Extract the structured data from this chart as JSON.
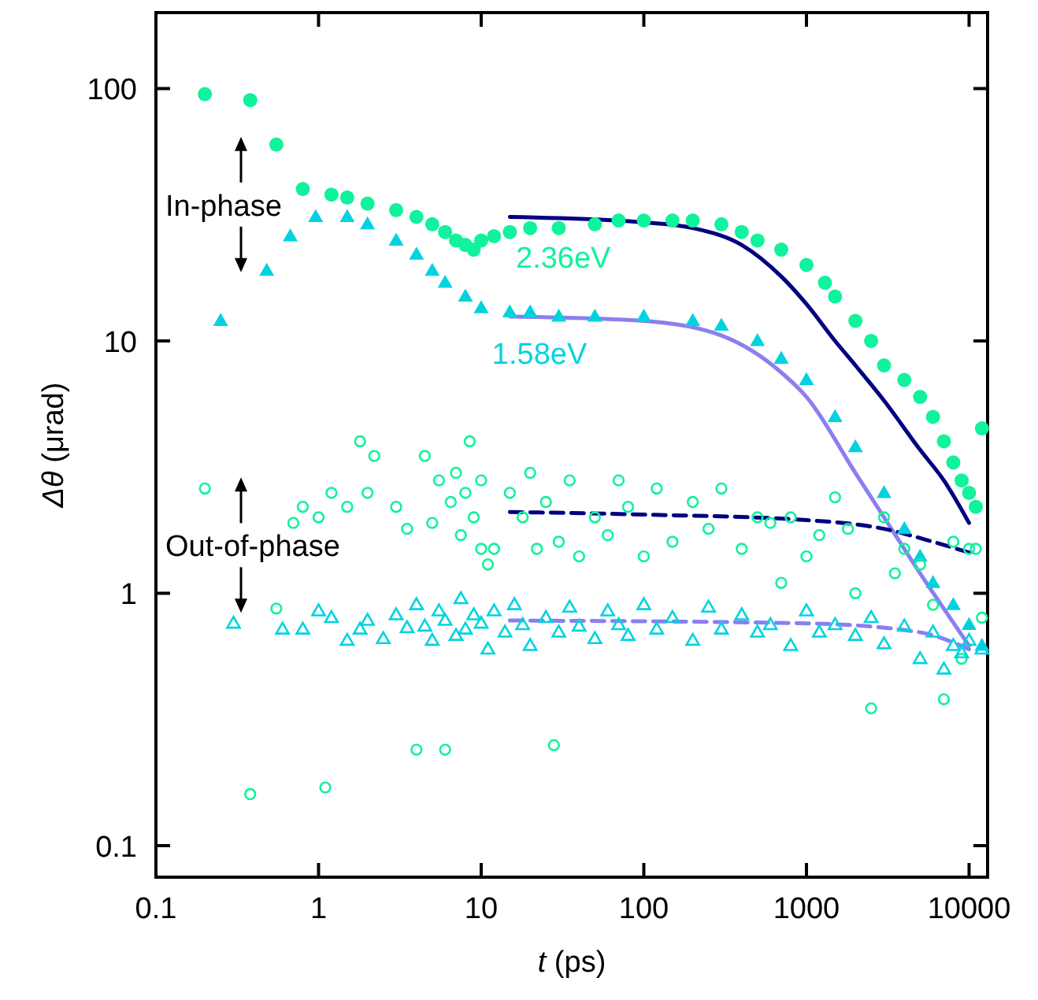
{
  "chart_data": {
    "type": "scatter",
    "xlabel": "t (ps)",
    "ylabel": "Δθ (μrad)",
    "log": "xy",
    "grid": false,
    "xlim": [
      0.1,
      13000
    ],
    "xticks": [
      0.1,
      1,
      10,
      100,
      1000,
      10000
    ],
    "ylim": [
      0.075,
      200
    ],
    "yticks": [
      0.1,
      1,
      10,
      100
    ],
    "annotations": [
      "In-phase",
      "Out-of-phase"
    ],
    "series": [
      {
        "name": "2.36eV",
        "marker": "circle",
        "color": "#10f29c",
        "x": [
          0.2,
          0.38,
          0.55,
          0.8,
          1.2,
          1.5,
          2,
          3,
          4,
          5,
          6,
          7,
          8,
          9,
          10,
          12,
          15,
          20,
          30,
          50,
          70,
          100,
          150,
          200,
          300,
          400,
          500,
          700,
          1000,
          1300,
          1500,
          2000,
          2500,
          3000,
          4000,
          5000,
          6000,
          7000,
          8000,
          9000,
          10000,
          11000,
          12000
        ],
        "values": [
          95,
          90,
          60,
          40,
          38,
          37,
          35,
          33,
          31,
          29,
          27,
          25,
          24,
          23,
          25,
          26,
          27,
          28,
          28,
          29,
          30,
          30,
          30,
          30,
          29,
          27,
          25,
          23,
          20,
          17,
          15,
          12,
          10,
          8,
          7,
          6,
          5,
          4,
          3.3,
          2.8,
          2.5,
          2.2,
          4.5
        ]
      },
      {
        "name": "1.58eV",
        "marker": "triangle",
        "color": "#00d3df",
        "x": [
          0.25,
          0.48,
          0.67,
          0.96,
          1.5,
          2,
          3,
          4,
          5,
          6,
          8,
          10,
          15,
          20,
          30,
          50,
          100,
          200,
          300,
          500,
          700,
          1000,
          1500,
          2000,
          3000,
          4000,
          5000,
          6000,
          8000,
          10000,
          12000
        ],
        "values": [
          12,
          19,
          26,
          31,
          31,
          29,
          25,
          22,
          19,
          17,
          15,
          13.5,
          13,
          13,
          12.5,
          12.5,
          12.5,
          12,
          11.5,
          10,
          8.5,
          7,
          5,
          3.8,
          2.5,
          1.8,
          1.4,
          1.1,
          0.9,
          0.75,
          0.62
        ]
      },
      {
        "marker": "circle",
        "color": "#10f29c",
        "x": [
          0.2,
          0.38,
          0.55,
          0.7,
          0.8,
          1,
          1.1,
          1.2,
          1.5,
          1.8,
          2,
          2.2,
          3,
          3.5,
          4,
          4.5,
          5,
          5.5,
          6,
          6.5,
          7,
          7.5,
          8,
          8.5,
          9,
          10,
          10,
          11,
          12,
          15,
          18,
          20,
          22,
          25,
          28,
          30,
          35,
          40,
          50,
          60,
          70,
          80,
          100,
          120,
          150,
          200,
          250,
          300,
          400,
          500,
          600,
          700,
          800,
          1000,
          1200,
          1500,
          1800,
          2000,
          2500,
          3000,
          3500,
          4000,
          5000,
          6000,
          7000,
          8000,
          9000,
          10000,
          11000,
          12000
        ],
        "values": [
          2.6,
          0.16,
          0.87,
          1.9,
          2.2,
          2,
          0.17,
          2.5,
          2.2,
          4,
          2.5,
          3.5,
          2.2,
          1.8,
          0.24,
          3.5,
          1.9,
          2.8,
          0.24,
          2.3,
          3,
          1.7,
          2.5,
          4,
          2,
          1.5,
          2.8,
          1.3,
          1.5,
          2.5,
          2,
          3,
          1.5,
          2.3,
          0.25,
          1.6,
          2.8,
          1.4,
          2,
          1.7,
          2.8,
          2.2,
          1.4,
          2.6,
          1.6,
          2.3,
          1.8,
          2.6,
          1.5,
          2,
          1.9,
          1.1,
          2,
          1.4,
          1.7,
          2.4,
          1.8,
          1,
          0.35,
          2,
          1.2,
          1.5,
          1.3,
          0.9,
          0.38,
          1.6,
          0.55,
          1.5,
          1.5,
          0.8
        ]
      },
      {
        "marker": "triangle",
        "color": "#00d3df",
        "x": [
          0.3,
          0.6,
          0.8,
          1,
          1.2,
          1.5,
          1.8,
          2,
          2.5,
          3,
          3.5,
          4,
          4.5,
          5,
          5.5,
          6,
          7,
          7.5,
          8,
          9,
          10,
          11,
          12,
          14,
          16,
          18,
          20,
          25,
          30,
          35,
          40,
          50,
          60,
          70,
          80,
          100,
          120,
          150,
          200,
          250,
          300,
          400,
          500,
          600,
          800,
          1000,
          1200,
          1500,
          2000,
          2500,
          3000,
          4000,
          5000,
          6000,
          7000,
          8000,
          9000,
          10000,
          12000
        ],
        "values": [
          0.76,
          0.72,
          0.72,
          0.85,
          0.8,
          0.65,
          0.72,
          0.78,
          0.66,
          0.82,
          0.73,
          0.9,
          0.74,
          0.65,
          0.85,
          0.78,
          0.68,
          0.95,
          0.72,
          0.82,
          0.76,
          0.6,
          0.85,
          0.7,
          0.9,
          0.75,
          0.62,
          0.8,
          0.7,
          0.88,
          0.74,
          0.66,
          0.85,
          0.75,
          0.68,
          0.9,
          0.72,
          0.8,
          0.65,
          0.88,
          0.72,
          0.82,
          0.7,
          0.75,
          0.62,
          0.85,
          0.7,
          0.75,
          0.68,
          0.8,
          0.63,
          0.74,
          0.55,
          0.7,
          0.5,
          0.62,
          0.58,
          0.65,
          0.6
        ]
      },
      {
        "type": "line",
        "marker": "none",
        "line_style": "solid",
        "color": "#000080",
        "x": [
          15,
          100,
          200,
          400,
          700,
          1000,
          1500,
          2000,
          3000,
          5000,
          7000,
          10000
        ],
        "values": [
          31,
          29.5,
          28,
          24,
          18,
          14,
          10,
          8,
          5.8,
          3.7,
          2.8,
          1.9
        ]
      },
      {
        "type": "line",
        "marker": "none",
        "line_style": "solid",
        "color": "#8a7ff0",
        "x": [
          15,
          100,
          300,
          700,
          1000,
          2000,
          3000,
          5000,
          10000
        ],
        "values": [
          12.5,
          12,
          10.5,
          7.5,
          6,
          3,
          2,
          1.2,
          0.62
        ]
      },
      {
        "type": "line",
        "marker": "none",
        "line_style": "dashed",
        "color": "#000080",
        "x": [
          15,
          100,
          1000,
          3000,
          6000,
          10000
        ],
        "values": [
          2.1,
          2.05,
          1.95,
          1.8,
          1.6,
          1.45
        ]
      },
      {
        "type": "line",
        "marker": "none",
        "line_style": "dashed",
        "color": "#8a7ff0",
        "x": [
          15,
          1000,
          5000,
          10000
        ],
        "values": [
          0.78,
          0.76,
          0.7,
          0.6
        ]
      }
    ]
  }
}
